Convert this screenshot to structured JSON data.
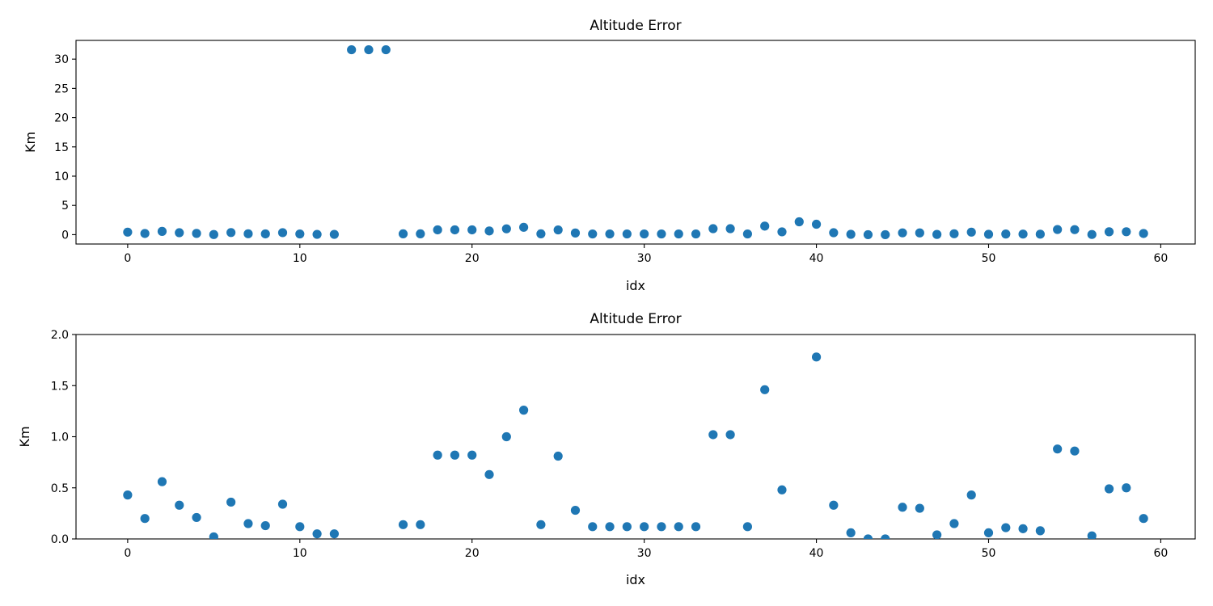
{
  "chart_data": [
    {
      "type": "scatter",
      "title": "Altitude Error",
      "xlabel": "idx",
      "ylabel": "Km",
      "xlim": [
        -3,
        62
      ],
      "ylim": [
        -1.6,
        33.2
      ],
      "xticks": [
        0,
        10,
        20,
        30,
        40,
        50,
        60
      ],
      "yticks": [
        0,
        5,
        10,
        15,
        20,
        25,
        30
      ],
      "ytick_labels": [
        "0",
        "5",
        "10",
        "15",
        "20",
        "25",
        "30"
      ],
      "grid": false,
      "color": "#1f77b4",
      "x": [
        0,
        1,
        2,
        3,
        4,
        5,
        6,
        7,
        8,
        9,
        10,
        11,
        12,
        13,
        14,
        15,
        16,
        17,
        18,
        19,
        20,
        21,
        22,
        23,
        24,
        25,
        26,
        27,
        28,
        29,
        30,
        31,
        32,
        33,
        34,
        35,
        36,
        37,
        38,
        39,
        40,
        41,
        42,
        43,
        44,
        45,
        46,
        47,
        48,
        49,
        50,
        51,
        52,
        53,
        54,
        55,
        56,
        57,
        58,
        59
      ],
      "y": [
        0.43,
        0.2,
        0.56,
        0.33,
        0.21,
        0.02,
        0.36,
        0.15,
        0.13,
        0.34,
        0.12,
        0.05,
        0.05,
        31.6,
        31.6,
        31.6,
        0.14,
        0.14,
        0.82,
        0.82,
        0.82,
        0.63,
        1.0,
        1.26,
        0.14,
        0.81,
        0.28,
        0.12,
        0.12,
        0.12,
        0.12,
        0.12,
        0.12,
        0.12,
        1.02,
        1.02,
        0.12,
        1.46,
        0.48,
        2.2,
        1.78,
        0.33,
        0.06,
        0.0,
        0.0,
        0.31,
        0.3,
        0.04,
        0.15,
        0.43,
        0.06,
        0.11,
        0.1,
        0.08,
        0.88,
        0.86,
        0.03,
        0.49,
        0.5,
        0.2
      ]
    },
    {
      "type": "scatter",
      "title": "Altitude Error",
      "xlabel": "idx",
      "ylabel": "Km",
      "xlim": [
        -3,
        62
      ],
      "ylim": [
        0,
        2.0
      ],
      "xticks": [
        0,
        10,
        20,
        30,
        40,
        50,
        60
      ],
      "yticks": [
        0,
        0.5,
        1.0,
        1.5,
        2.0
      ],
      "ytick_labels": [
        "0.0",
        "0.5",
        "1.0",
        "1.5",
        "2.0"
      ],
      "grid": false,
      "color": "#1f77b4",
      "x": [
        0,
        1,
        2,
        3,
        4,
        5,
        6,
        7,
        8,
        9,
        10,
        11,
        12,
        16,
        17,
        18,
        19,
        20,
        21,
        22,
        23,
        24,
        25,
        26,
        27,
        28,
        29,
        30,
        31,
        32,
        33,
        34,
        35,
        36,
        37,
        38,
        40,
        41,
        42,
        43,
        44,
        45,
        46,
        47,
        48,
        49,
        50,
        51,
        52,
        53,
        54,
        55,
        56,
        57,
        58,
        59
      ],
      "y": [
        0.43,
        0.2,
        0.56,
        0.33,
        0.21,
        0.02,
        0.36,
        0.15,
        0.13,
        0.34,
        0.12,
        0.05,
        0.05,
        0.14,
        0.14,
        0.82,
        0.82,
        0.82,
        0.63,
        1.0,
        1.26,
        0.14,
        0.81,
        0.28,
        0.12,
        0.12,
        0.12,
        0.12,
        0.12,
        0.12,
        0.12,
        1.02,
        1.02,
        0.12,
        1.46,
        0.48,
        1.78,
        0.33,
        0.06,
        0.0,
        0.0,
        0.31,
        0.3,
        0.04,
        0.15,
        0.43,
        0.06,
        0.11,
        0.1,
        0.08,
        0.88,
        0.86,
        0.03,
        0.49,
        0.5,
        0.2
      ]
    }
  ]
}
